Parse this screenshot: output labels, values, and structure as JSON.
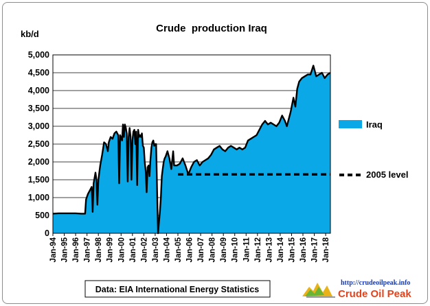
{
  "chart_data": {
    "type": "area",
    "title": "Crude  production Iraq",
    "ylabel": "kb/d",
    "xlabel": "",
    "ylim": [
      0,
      5000
    ],
    "yticks": [
      "0",
      "500",
      "1,000",
      "1,500",
      "2,000",
      "2,500",
      "3,000",
      "3,500",
      "4,000",
      "4,500",
      "5,000"
    ],
    "ytick_values": [
      0,
      500,
      1000,
      1500,
      2000,
      2500,
      3000,
      3500,
      4000,
      4500,
      5000
    ],
    "x_start": "Jan-94",
    "x_end": "Jun-18",
    "xticks": [
      "Jan-94",
      "Jan-95",
      "Jan-96",
      "Jan-97",
      "Jan-98",
      "Jan-99",
      "Jan-00",
      "Jan-01",
      "Jan-02",
      "Jan-03",
      "Jan-04",
      "Jan-05",
      "Jan-06",
      "Jan-07",
      "Jan-08",
      "Jan-09",
      "Jan-10",
      "Jan-11",
      "Jan-12",
      "Jan-13",
      "Jan-14",
      "Jan-15",
      "Jan-16",
      "Jan-17",
      "Jan-18"
    ],
    "grid": true,
    "legend_position": "right",
    "series": [
      {
        "name": "Iraq",
        "style": "area",
        "color": "#0aa8e6",
        "outline": "#000000",
        "points": [
          [
            "Jan-94",
            550
          ],
          [
            "Jul-94",
            560
          ],
          [
            "Jan-95",
            560
          ],
          [
            "Jul-95",
            560
          ],
          [
            "Jan-96",
            560
          ],
          [
            "Jul-96",
            550
          ],
          [
            "Nov-96",
            550
          ],
          [
            "Dec-96",
            950
          ],
          [
            "Feb-97",
            1100
          ],
          [
            "Apr-97",
            1200
          ],
          [
            "Jun-97",
            1300
          ],
          [
            "Jul-97",
            600
          ],
          [
            "Aug-97",
            1400
          ],
          [
            "Oct-97",
            1700
          ],
          [
            "Nov-97",
            1500
          ],
          [
            "Dec-97",
            800
          ],
          [
            "Jan-98",
            1500
          ],
          [
            "Mar-98",
            1900
          ],
          [
            "May-98",
            2200
          ],
          [
            "Jul-98",
            2550
          ],
          [
            "Sep-98",
            2500
          ],
          [
            "Nov-98",
            2300
          ],
          [
            "Dec-98",
            2550
          ],
          [
            "Feb-99",
            2700
          ],
          [
            "Apr-99",
            2650
          ],
          [
            "Jun-99",
            2800
          ],
          [
            "Aug-99",
            2850
          ],
          [
            "Oct-99",
            2750
          ],
          [
            "Nov-99",
            1400
          ],
          [
            "Dec-99",
            2750
          ],
          [
            "Feb-00",
            2600
          ],
          [
            "Mar-00",
            3050
          ],
          [
            "Apr-00",
            2700
          ],
          [
            "May-00",
            3050
          ],
          [
            "Jun-00",
            2950
          ],
          [
            "Jul-00",
            2800
          ],
          [
            "Aug-00",
            1450
          ],
          [
            "Sep-00",
            2700
          ],
          [
            "Oct-00",
            2950
          ],
          [
            "Nov-00",
            2700
          ],
          [
            "Dec-00",
            1500
          ],
          [
            "Jan-01",
            2600
          ],
          [
            "Feb-01",
            2850
          ],
          [
            "Mar-01",
            2900
          ],
          [
            "Apr-01",
            2500
          ],
          [
            "May-01",
            2850
          ],
          [
            "Jun-01",
            1350
          ],
          [
            "Jul-01",
            2900
          ],
          [
            "Aug-01",
            2700
          ],
          [
            "Sep-01",
            2750
          ],
          [
            "Oct-01",
            2700
          ],
          [
            "Nov-01",
            2800
          ],
          [
            "Dec-01",
            2450
          ],
          [
            "Jan-02",
            2400
          ],
          [
            "Feb-02",
            2000
          ],
          [
            "Mar-02",
            1750
          ],
          [
            "Apr-02",
            1150
          ],
          [
            "May-02",
            1850
          ],
          [
            "Jun-02",
            1900
          ],
          [
            "Jul-02",
            1600
          ],
          [
            "Aug-02",
            2050
          ],
          [
            "Sep-02",
            2400
          ],
          [
            "Oct-02",
            2550
          ],
          [
            "Nov-02",
            2600
          ],
          [
            "Dec-02",
            2450
          ],
          [
            "Jan-03",
            2500
          ],
          [
            "Feb-03",
            2500
          ],
          [
            "Mar-03",
            1200
          ],
          [
            "Apr-03",
            0
          ],
          [
            "May-03",
            300
          ],
          [
            "Jun-03",
            600
          ],
          [
            "Jul-03",
            1000
          ],
          [
            "Aug-03",
            1600
          ],
          [
            "Sep-03",
            1800
          ],
          [
            "Oct-03",
            2000
          ],
          [
            "Nov-03",
            2100
          ],
          [
            "Dec-03",
            2150
          ],
          [
            "Feb-04",
            2300
          ],
          [
            "Apr-04",
            2100
          ],
          [
            "Jun-04",
            1800
          ],
          [
            "Aug-04",
            2300
          ],
          [
            "Sep-04",
            1900
          ],
          [
            "Dec-04",
            1900
          ],
          [
            "Mar-05",
            1950
          ],
          [
            "Jun-05",
            2100
          ],
          [
            "Sep-05",
            1900
          ],
          [
            "Dec-05",
            1650
          ],
          [
            "Mar-06",
            1850
          ],
          [
            "Jun-06",
            2000
          ],
          [
            "Sep-06",
            2050
          ],
          [
            "Dec-06",
            1900
          ],
          [
            "Mar-07",
            2000
          ],
          [
            "Jun-07",
            2050
          ],
          [
            "Sep-07",
            2100
          ],
          [
            "Dec-07",
            2200
          ],
          [
            "Mar-08",
            2350
          ],
          [
            "Jun-08",
            2400
          ],
          [
            "Sep-08",
            2450
          ],
          [
            "Dec-08",
            2350
          ],
          [
            "Mar-09",
            2300
          ],
          [
            "Jun-09",
            2400
          ],
          [
            "Sep-09",
            2450
          ],
          [
            "Dec-09",
            2400
          ],
          [
            "Mar-10",
            2350
          ],
          [
            "Jun-10",
            2400
          ],
          [
            "Sep-10",
            2350
          ],
          [
            "Dec-10",
            2400
          ],
          [
            "Mar-11",
            2600
          ],
          [
            "Jun-11",
            2650
          ],
          [
            "Sep-11",
            2700
          ],
          [
            "Dec-11",
            2750
          ],
          [
            "Mar-12",
            2900
          ],
          [
            "Jun-12",
            3050
          ],
          [
            "Sep-12",
            3150
          ],
          [
            "Dec-12",
            3050
          ],
          [
            "Mar-13",
            3100
          ],
          [
            "Jun-13",
            3050
          ],
          [
            "Sep-13",
            3000
          ],
          [
            "Dec-13",
            3100
          ],
          [
            "Mar-14",
            3300
          ],
          [
            "Jun-14",
            3150
          ],
          [
            "Aug-14",
            3000
          ],
          [
            "Dec-14",
            3400
          ],
          [
            "Mar-15",
            3800
          ],
          [
            "May-15",
            3550
          ],
          [
            "Jul-15",
            4050
          ],
          [
            "Sep-15",
            4250
          ],
          [
            "Dec-15",
            4350
          ],
          [
            "Mar-16",
            4400
          ],
          [
            "Jun-16",
            4450
          ],
          [
            "Sep-16",
            4450
          ],
          [
            "Dec-16",
            4700
          ],
          [
            "Mar-17",
            4400
          ],
          [
            "Jun-17",
            4450
          ],
          [
            "Sep-17",
            4500
          ],
          [
            "Dec-17",
            4350
          ],
          [
            "Mar-18",
            4450
          ],
          [
            "Jun-18",
            4500
          ]
        ]
      },
      {
        "name": "2005 level",
        "style": "dashed-line",
        "color": "#000000",
        "from": "Jan-05",
        "to": "Jun-18",
        "value": 1650
      }
    ],
    "annotations": [
      "Data: EIA International Energy Statistics"
    ]
  },
  "logo": {
    "url": "http://crudeoilpeak.info",
    "name": "Crude Oil Peak"
  }
}
